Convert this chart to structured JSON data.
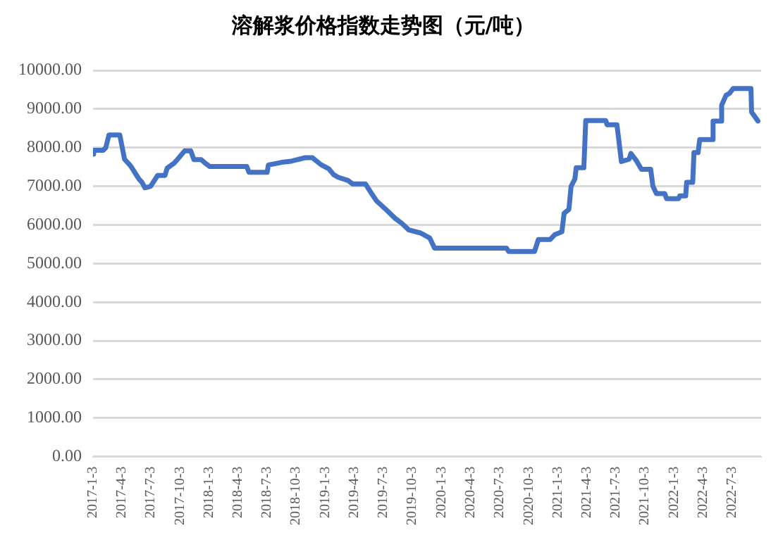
{
  "chart_data": {
    "type": "line",
    "title": "溶解浆价格指数走势图（元/吨）",
    "color": "#4472c4",
    "marker": "none",
    "line_style": "solid",
    "grid": "y",
    "legend": false,
    "x": [
      "2017-01-03",
      "2017-01-05",
      "2017-02-04",
      "2017-02-12",
      "2017-02-22",
      "2017-03-28",
      "2017-04-12",
      "2017-05-01",
      "2017-05-27",
      "2017-06-06",
      "2017-06-15",
      "2017-07-03",
      "2017-07-25",
      "2017-08-17",
      "2017-08-24",
      "2017-09-15",
      "2017-09-30",
      "2017-10-18",
      "2017-11-06",
      "2017-11-16",
      "2017-12-09",
      "2017-12-21",
      "2018-01-05",
      "2018-05-01",
      "2018-05-08",
      "2018-07-04",
      "2018-07-08",
      "2018-08-19",
      "2018-09-18",
      "2018-11-01",
      "2018-11-23",
      "2018-12-20",
      "2019-01-14",
      "2019-01-29",
      "2019-02-13",
      "2019-03-15",
      "2019-03-30",
      "2019-05-09",
      "2019-05-29",
      "2019-06-13",
      "2019-07-12",
      "2019-08-10",
      "2019-08-31",
      "2019-09-22",
      "2019-10-29",
      "2019-11-27",
      "2019-12-12",
      "2020-07-25",
      "2020-08-01",
      "2020-10-21",
      "2020-11-02",
      "2020-12-09",
      "2020-12-24",
      "2021-01-15",
      "2021-01-22",
      "2021-02-06",
      "2021-02-13",
      "2021-02-25",
      "2021-03-01",
      "2021-03-25",
      "2021-03-31",
      "2021-06-02",
      "2021-06-06",
      "2021-07-07",
      "2021-07-21",
      "2021-08-14",
      "2021-08-20",
      "2021-09-07",
      "2021-09-22",
      "2021-10-21",
      "2021-10-28",
      "2021-11-08",
      "2021-12-04",
      "2021-12-10",
      "2022-01-17",
      "2022-01-20",
      "2022-02-08",
      "2022-02-11",
      "2022-03-02",
      "2022-03-06",
      "2022-03-19",
      "2022-03-24",
      "2022-05-02",
      "2022-05-05",
      "2022-05-29",
      "2022-06-01",
      "2022-06-15",
      "2022-06-25",
      "2022-07-07",
      "2022-09-01",
      "2022-09-03",
      "2022-09-23"
    ],
    "values": [
      7830,
      7930,
      7930,
      8000,
      8330,
      8330,
      7700,
      7530,
      7190,
      7100,
      6960,
      7000,
      7280,
      7280,
      7470,
      7600,
      7740,
      7920,
      7920,
      7690,
      7690,
      7600,
      7510,
      7510,
      7360,
      7360,
      7550,
      7620,
      7650,
      7740,
      7740,
      7560,
      7450,
      7300,
      7230,
      7150,
      7060,
      7060,
      6800,
      6620,
      6400,
      6170,
      6040,
      5870,
      5790,
      5660,
      5400,
      5400,
      5310,
      5310,
      5620,
      5620,
      5750,
      5820,
      6300,
      6400,
      7000,
      7190,
      7480,
      7480,
      8700,
      8700,
      8590,
      8590,
      7640,
      7700,
      7850,
      7650,
      7440,
      7440,
      7000,
      6810,
      6810,
      6680,
      6680,
      6750,
      6750,
      7100,
      7100,
      7870,
      7870,
      8210,
      8210,
      8690,
      8690,
      9100,
      9360,
      9400,
      9530,
      9530,
      8920,
      8690
    ],
    "xlim": [
      "2017-01-03",
      "2022-10-03"
    ],
    "xticks": [
      {
        "value": "2017-01-03",
        "label": "2017-1-3"
      },
      {
        "value": "2017-04-03",
        "label": "2017-4-3"
      },
      {
        "value": "2017-07-03",
        "label": "2017-7-3"
      },
      {
        "value": "2017-10-03",
        "label": "2017-10-3"
      },
      {
        "value": "2018-01-03",
        "label": "2018-1-3"
      },
      {
        "value": "2018-04-03",
        "label": "2018-4-3"
      },
      {
        "value": "2018-07-03",
        "label": "2018-7-3"
      },
      {
        "value": "2018-10-03",
        "label": "2018-10-3"
      },
      {
        "value": "2019-01-03",
        "label": "2019-1-3"
      },
      {
        "value": "2019-04-03",
        "label": "2019-4-3"
      },
      {
        "value": "2019-07-03",
        "label": "2019-7-3"
      },
      {
        "value": "2019-10-03",
        "label": "2019-10-3"
      },
      {
        "value": "2020-01-03",
        "label": "2020-1-3"
      },
      {
        "value": "2020-04-03",
        "label": "2020-4-3"
      },
      {
        "value": "2020-07-03",
        "label": "2020-7-3"
      },
      {
        "value": "2020-10-03",
        "label": "2020-10-3"
      },
      {
        "value": "2021-01-03",
        "label": "2021-1-3"
      },
      {
        "value": "2021-04-03",
        "label": "2021-4-3"
      },
      {
        "value": "2021-07-03",
        "label": "2021-7-3"
      },
      {
        "value": "2021-10-03",
        "label": "2021-10-3"
      },
      {
        "value": "2022-01-03",
        "label": "2022-1-3"
      },
      {
        "value": "2022-04-03",
        "label": "2022-4-3"
      },
      {
        "value": "2022-07-03",
        "label": "2022-7-3"
      }
    ],
    "ylim": [
      0,
      10000
    ],
    "yticks": [
      {
        "value": 0,
        "label": "0.00"
      },
      {
        "value": 1000,
        "label": "1000.00"
      },
      {
        "value": 2000,
        "label": "2000.00"
      },
      {
        "value": 3000,
        "label": "3000.00"
      },
      {
        "value": 4000,
        "label": "4000.00"
      },
      {
        "value": 5000,
        "label": "5000.00"
      },
      {
        "value": 6000,
        "label": "6000.00"
      },
      {
        "value": 7000,
        "label": "7000.00"
      },
      {
        "value": 8000,
        "label": "8000.00"
      },
      {
        "value": 9000,
        "label": "9000.00"
      },
      {
        "value": 10000,
        "label": "10000.00"
      }
    ]
  }
}
